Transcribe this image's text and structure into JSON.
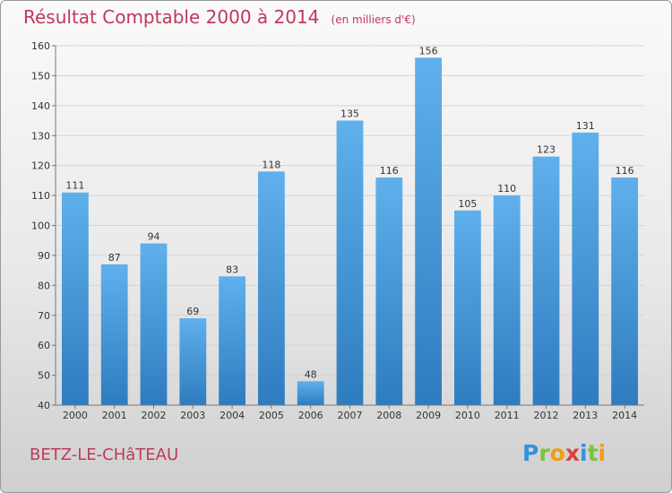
{
  "header": {
    "title": "Résultat Comptable 2000 à 2014",
    "subtitle": "(en milliers d'€)"
  },
  "footer": {
    "commune": "BETZ-LE-CHâTEAU",
    "logo": "Proxiti"
  },
  "colors": {
    "title": "#c0395a",
    "bar_light": "#5fb0ec",
    "bar_dark": "#2e7cc0"
  },
  "chart_data": {
    "type": "bar",
    "title": "Résultat Comptable 2000 à 2014",
    "subtitle": "(en milliers d'€)",
    "xlabel": "",
    "ylabel": "",
    "categories": [
      "2000",
      "2001",
      "2002",
      "2003",
      "2004",
      "2005",
      "2006",
      "2007",
      "2008",
      "2009",
      "2010",
      "2011",
      "2012",
      "2013",
      "2014"
    ],
    "values": [
      111,
      87,
      94,
      69,
      83,
      118,
      48,
      135,
      116,
      156,
      105,
      110,
      123,
      131,
      116
    ],
    "ylim": [
      40,
      160
    ],
    "yticks": [
      40,
      50,
      60,
      70,
      80,
      90,
      100,
      110,
      120,
      130,
      140,
      150,
      160
    ],
    "grid": true,
    "data_labels": true
  }
}
